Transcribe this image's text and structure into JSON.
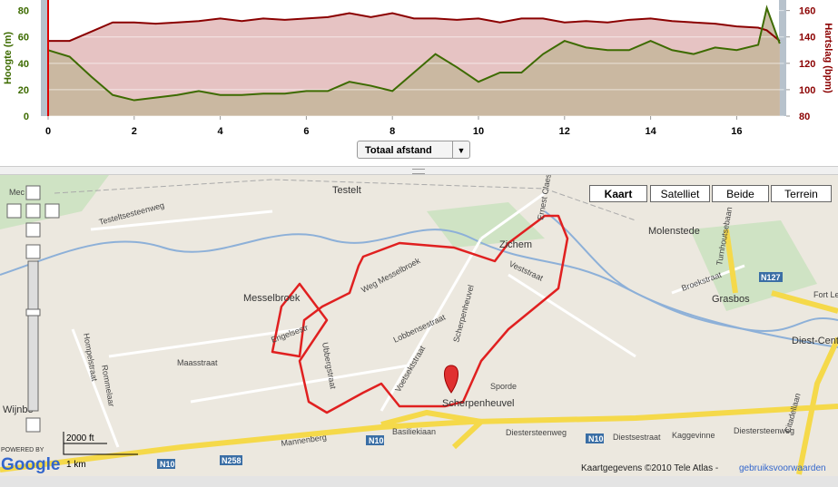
{
  "chart_data": {
    "type": "line",
    "ylabel": "Hoogte (m)",
    "y2label": "Hartslag (bpm)",
    "x": [
      0,
      0.5,
      1,
      1.5,
      2,
      2.5,
      3,
      3.5,
      4,
      4.5,
      5,
      5.5,
      6,
      6.5,
      7,
      7.5,
      8,
      8.5,
      9,
      9.5,
      10,
      10.5,
      11,
      11.5,
      12,
      12.5,
      13,
      13.5,
      14,
      14.5,
      15,
      15.5,
      16,
      16.5,
      16.7,
      17
    ],
    "xlim": [
      0,
      17.1
    ],
    "xticks": [
      0,
      2,
      4,
      6,
      8,
      10,
      12,
      14,
      16
    ],
    "ylim": [
      0,
      88
    ],
    "yticks": [
      0,
      20,
      40,
      60,
      80
    ],
    "y2lim": [
      80,
      168
    ],
    "y2ticks": [
      80,
      100,
      120,
      140,
      160
    ],
    "series": [
      {
        "color": "#8b0000",
        "fill": "#e6c3c3",
        "axis": "y2",
        "values": [
          137,
          137,
          144,
          151,
          151,
          150,
          151,
          152,
          154,
          152,
          154,
          153,
          154,
          155,
          158,
          155,
          158,
          154,
          154,
          153,
          154,
          151,
          154,
          154,
          151,
          152,
          151,
          153,
          154,
          152,
          151,
          150,
          148,
          147,
          145,
          137
        ]
      },
      {
        "color": "#3d6b00",
        "fill": "#c7b79d",
        "values": [
          50,
          45,
          30,
          16,
          12,
          14,
          16,
          19,
          16,
          16,
          17,
          17,
          19,
          19,
          26,
          23,
          19,
          33,
          47,
          37,
          26,
          33,
          33,
          47,
          57,
          52,
          50,
          50,
          57,
          50,
          47,
          52,
          50,
          54,
          82,
          55
        ]
      }
    ]
  },
  "controls": {
    "distance_select": "Totaal afstand"
  },
  "map": {
    "buttons": [
      "Kaart",
      "Satelliet",
      "Beide",
      "Terrein"
    ],
    "places": [
      "Testelt",
      "Zichem",
      "Molenstede",
      "Messelbroek",
      "Grasbos",
      "Scherpenheuvel",
      "Diest-Centr",
      "Wijnbe"
    ],
    "roads": [
      "Testeltsesteenweg",
      "Weg Messelbroek",
      "Veststraat",
      "Scherpenheuvel",
      "Lobbensestraat",
      "Maasstraat",
      "Rommelaar",
      "Hompelstraat",
      "Voetsektstraat",
      "Mannenberg",
      "Basiliekiaan",
      "Diestersteenweg",
      "Kaggevinne",
      "Diestsestraat",
      "Diestersteenweg",
      "Broekstraat",
      "Turnhoutsebaan",
      "Citadellaan",
      "Fort Leo",
      "Sporde",
      "Engelsestr",
      "Ubbergstraat",
      "N10",
      "N10",
      "N10",
      "N258",
      "N127",
      "Mec",
      "Ernest Claesst"
    ],
    "scale": [
      "2000 ft",
      "1 km"
    ],
    "powered_by": "POWERED BY",
    "logo": "Google",
    "copyright": "Kaartgegevens ©2010 Tele Atlas -",
    "terms_link": "gebruiksvoorwaarden"
  }
}
